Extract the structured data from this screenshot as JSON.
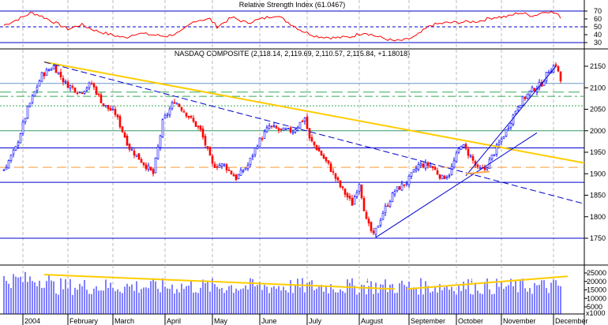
{
  "chart_data": {
    "type": "candlestick",
    "rsi": {
      "title": "Relative Strength Index (61.0467)",
      "levels": [
        70,
        50,
        30
      ],
      "ticks": [
        70,
        60,
        50,
        40,
        30
      ],
      "points": [
        [
          0,
          52
        ],
        [
          8,
          60
        ],
        [
          15,
          68
        ],
        [
          20,
          64
        ],
        [
          28,
          55
        ],
        [
          35,
          47
        ],
        [
          42,
          53
        ],
        [
          50,
          45
        ],
        [
          58,
          40
        ],
        [
          66,
          36
        ],
        [
          72,
          42
        ],
        [
          80,
          40
        ],
        [
          88,
          38
        ],
        [
          96,
          43
        ],
        [
          104,
          58
        ],
        [
          112,
          60
        ],
        [
          116,
          50
        ],
        [
          124,
          62
        ],
        [
          132,
          55
        ],
        [
          140,
          60
        ],
        [
          148,
          65
        ],
        [
          155,
          55
        ],
        [
          162,
          45
        ],
        [
          170,
          38
        ],
        [
          180,
          36
        ],
        [
          188,
          37
        ],
        [
          196,
          43
        ],
        [
          204,
          37
        ],
        [
          212,
          32
        ],
        [
          218,
          33
        ],
        [
          224,
          38
        ],
        [
          232,
          52
        ],
        [
          240,
          55
        ],
        [
          250,
          56
        ],
        [
          258,
          57
        ],
        [
          266,
          62
        ],
        [
          274,
          63
        ],
        [
          280,
          68
        ],
        [
          288,
          64
        ],
        [
          295,
          70
        ],
        [
          300,
          67
        ],
        [
          304,
          60
        ]
      ]
    },
    "price": {
      "title": "NASDAQ COMPOSITE (2,118.14, 2,119.69, 2,110.57, 2,115.84, +1.18018)",
      "ylim": [
        1700,
        2175
      ],
      "ticks": [
        2150,
        2100,
        2050,
        2000,
        1950,
        1900,
        1850,
        1800,
        1750
      ],
      "points": [
        [
          0,
          1910
        ],
        [
          5,
          1960
        ],
        [
          10,
          2050
        ],
        [
          16,
          2130
        ],
        [
          21,
          2150
        ],
        [
          26,
          2110
        ],
        [
          32,
          2090
        ],
        [
          37,
          2110
        ],
        [
          42,
          2060
        ],
        [
          47,
          2040
        ],
        [
          53,
          1960
        ],
        [
          58,
          1930
        ],
        [
          63,
          1900
        ],
        [
          67,
          2020
        ],
        [
          72,
          2070
        ],
        [
          77,
          2040
        ],
        [
          83,
          2000
        ],
        [
          88,
          1920
        ],
        [
          93,
          1920
        ],
        [
          98,
          1890
        ],
        [
          103,
          1920
        ],
        [
          107,
          1970
        ],
        [
          112,
          2010
        ],
        [
          117,
          2000
        ],
        [
          122,
          2000
        ],
        [
          127,
          2030
        ],
        [
          129,
          1980
        ],
        [
          132,
          1960
        ],
        [
          137,
          1920
        ],
        [
          142,
          1870
        ],
        [
          147,
          1830
        ],
        [
          150,
          1880
        ],
        [
          153,
          1790
        ],
        [
          156,
          1755
        ],
        [
          160,
          1810
        ],
        [
          165,
          1860
        ],
        [
          170,
          1880
        ],
        [
          175,
          1920
        ],
        [
          180,
          1920
        ],
        [
          185,
          1890
        ],
        [
          188,
          1900
        ],
        [
          193,
          1970
        ],
        [
          197,
          1940
        ],
        [
          200,
          1910
        ],
        [
          203,
          1910
        ],
        [
          207,
          1950
        ],
        [
          212,
          2000
        ],
        [
          217,
          2060
        ],
        [
          222,
          2090
        ],
        [
          227,
          2110
        ],
        [
          230,
          2140
        ],
        [
          233,
          2155
        ],
        [
          235,
          2116
        ]
      ],
      "hlines": [
        {
          "value": 2110,
          "color": "#6699cc",
          "dash": ""
        },
        {
          "value": 2090,
          "color": "#33aa55",
          "dash": "14 6"
        },
        {
          "value": 2080,
          "color": "#33aa55",
          "dash": "10 4 3 4"
        },
        {
          "value": 2058,
          "color": "#33aa55",
          "dash": "2 2"
        },
        {
          "value": 2000,
          "color": "#339966",
          "dash": ""
        },
        {
          "value": 1960,
          "color": "#0000cc",
          "dash": ""
        },
        {
          "value": 1915,
          "color": "#ff9933",
          "dash": "12 6"
        },
        {
          "value": 1880,
          "color": "#0000cc",
          "dash": ""
        },
        {
          "value": 1750,
          "color": "#0000cc",
          "dash": ""
        }
      ],
      "trendlines": [
        {
          "from": [
            17,
            2160
          ],
          "to": [
            245,
            1925
          ],
          "color": "#ffcc00",
          "width": 2,
          "dash": ""
        },
        {
          "from": [
            17,
            2160
          ],
          "to": [
            245,
            1830
          ],
          "color": "#0000cc",
          "width": 1,
          "dash": "8 4"
        },
        {
          "from": [
            157,
            1752
          ],
          "to": [
            225,
            1995
          ],
          "color": "#0000cc",
          "width": 1,
          "dash": ""
        },
        {
          "from": [
            195,
            1895
          ],
          "to": [
            233,
            2150
          ],
          "color": "#0000cc",
          "width": 1,
          "dash": ""
        },
        {
          "from": [
            195,
            1900
          ],
          "to": [
            205,
            1905
          ],
          "color": "#ffaa55",
          "width": 2,
          "dash": ""
        }
      ]
    },
    "volume": {
      "ticks": [
        25000,
        20000,
        15000,
        10000,
        5000
      ],
      "ylim": [
        0,
        28000
      ],
      "unit_label": "x1000"
    },
    "months": [
      "2004",
      "February",
      "March",
      "April",
      "May",
      "June",
      "July",
      "August",
      "September",
      "October",
      "November",
      "December"
    ],
    "month_start_index": [
      8,
      27,
      46,
      68,
      88,
      108,
      128,
      150,
      171,
      191,
      210,
      232
    ],
    "bars": 236,
    "up_color": "#0000ff",
    "down_color": "#ff0000"
  }
}
